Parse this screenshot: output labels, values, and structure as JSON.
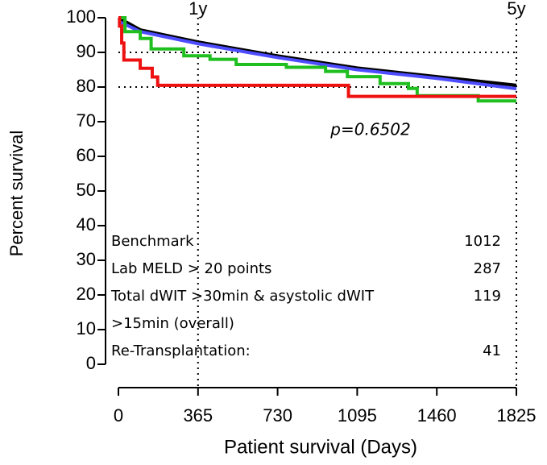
{
  "chart_data": {
    "type": "line",
    "step": true,
    "xlabel": "Patient survival (Days)",
    "ylabel": "Percent survival",
    "xlim": [
      0,
      1825
    ],
    "xticks": [
      0,
      365,
      730,
      1095,
      1460,
      1825
    ],
    "ylim": [
      0,
      100
    ],
    "yticks": [
      0,
      10,
      20,
      30,
      40,
      50,
      60,
      70,
      80,
      90,
      100
    ],
    "ref_lines_y": [
      90,
      80
    ],
    "ref_lines_x": [
      {
        "value": 365,
        "label": "1y"
      },
      {
        "value": 1825,
        "label": "5y"
      }
    ],
    "annotation": "p=0.6502",
    "series": [
      {
        "name": "Benchmark",
        "n": 1012,
        "color": "#000000",
        "x": [
          0,
          100,
          365,
          730,
          1095,
          1460,
          1825
        ],
        "values": [
          100,
          96.5,
          93,
          89,
          85.5,
          83,
          80.5
        ]
      },
      {
        "name": "Lab MELD > 20 points",
        "n": 287,
        "color": "#4d4dff",
        "x": [
          0,
          100,
          365,
          730,
          1095,
          1460,
          1825
        ],
        "values": [
          99,
          96,
          92.5,
          88.5,
          85,
          82.5,
          79.5
        ]
      },
      {
        "name": "Total dWIT >30min & asystolic dWIT >15min (overall)",
        "n": 119,
        "color": "#1fbf1f",
        "x": [
          0,
          30,
          30,
          100,
          100,
          150,
          150,
          300,
          300,
          420,
          420,
          540,
          540,
          770,
          770,
          950,
          950,
          1050,
          1050,
          1200,
          1200,
          1330,
          1330,
          1370,
          1370,
          1650,
          1650,
          1825
        ],
        "values": [
          100,
          100,
          96,
          96,
          94,
          94,
          91,
          91,
          89,
          89,
          88,
          88,
          86.5,
          86.5,
          85.7,
          85.7,
          84.5,
          84.5,
          83,
          83,
          81,
          81,
          79.6,
          79.6,
          77.5,
          77.5,
          76,
          76
        ]
      },
      {
        "name": "Re-Transplantation:",
        "n": 41,
        "color": "#ee1111",
        "x": [
          0,
          5,
          5,
          15,
          15,
          25,
          25,
          100,
          100,
          155,
          155,
          180,
          180,
          1055,
          1055,
          1825
        ],
        "values": [
          100,
          100,
          97.6,
          97.6,
          92.7,
          92.7,
          87.8,
          87.8,
          85.4,
          85.4,
          82.9,
          82.9,
          80.5,
          80.5,
          77.3,
          77.3
        ]
      }
    ]
  }
}
